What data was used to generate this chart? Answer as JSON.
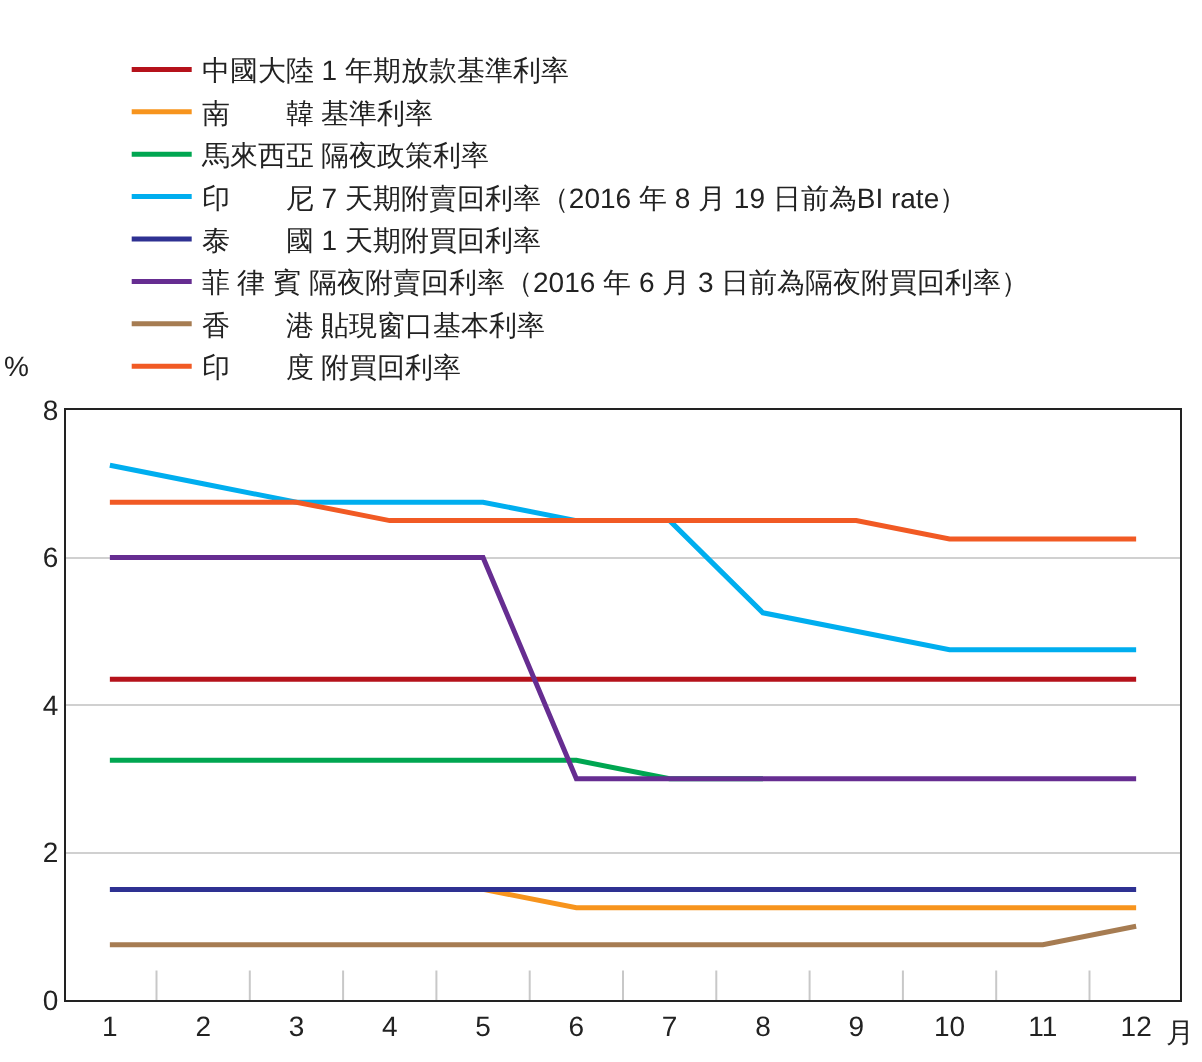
{
  "chart_data": {
    "type": "line",
    "xlabel": "月",
    "ylabel": "%",
    "x": [
      1,
      2,
      3,
      4,
      5,
      6,
      7,
      8,
      9,
      10,
      11,
      12
    ],
    "xlim": [
      0.53,
      12.47
    ],
    "xticks": [
      1,
      {
        "value": 1.5,
        "label": null
      },
      2,
      {
        "value": 2.5,
        "label": null
      },
      3,
      {
        "value": 3.5,
        "label": null
      },
      4,
      {
        "value": 4.5,
        "label": null
      },
      5,
      {
        "value": 5.5,
        "label": null
      },
      6,
      {
        "value": 6.5,
        "label": null
      },
      7,
      {
        "value": 7.5,
        "label": null
      },
      8,
      {
        "value": 8.5,
        "label": null
      },
      9,
      {
        "value": 9.5,
        "label": null
      },
      10,
      {
        "value": 10.5,
        "label": null
      },
      11,
      {
        "value": 11.5,
        "label": null
      },
      12
    ],
    "ylim": [
      0,
      8
    ],
    "yticks": [
      0,
      2,
      4,
      6,
      8
    ],
    "grid": "y",
    "legend": "top",
    "marker": "none",
    "line_style": "solid",
    "series": [
      {
        "name": "中國大陸 1 年期放款基準利率",
        "color": "#b5121b",
        "values": [
          4.35,
          4.35,
          4.35,
          4.35,
          4.35,
          4.35,
          4.35,
          4.35,
          4.35,
          4.35,
          4.35,
          4.35
        ]
      },
      {
        "name": "南　　韓 基準利率",
        "color": "#f7941d",
        "values": [
          null,
          null,
          null,
          null,
          1.5,
          1.25,
          1.25,
          1.25,
          1.25,
          1.25,
          1.25,
          1.25
        ]
      },
      {
        "name": "馬來西亞 隔夜政策利率",
        "color": "#00a651",
        "values": [
          3.25,
          3.25,
          3.25,
          3.25,
          3.25,
          3.25,
          3.0,
          3.0,
          null,
          null,
          null,
          null
        ]
      },
      {
        "name": "印　　尼 7 天期附賣回利率（2016 年 8 月 19 日前為BI rate）",
        "color": "#00aeef",
        "values": [
          7.25,
          7.0,
          6.75,
          6.75,
          6.75,
          6.5,
          6.5,
          5.25,
          5.0,
          4.75,
          4.75,
          4.75
        ]
      },
      {
        "name": "泰　　國 1 天期附買回利率",
        "color": "#2e3192",
        "values": [
          1.5,
          1.5,
          1.5,
          1.5,
          1.5,
          1.5,
          1.5,
          1.5,
          1.5,
          1.5,
          1.5,
          1.5
        ]
      },
      {
        "name": "菲 律 賓 隔夜附賣回利率（2016 年 6 月 3 日前為隔夜附買回利率）",
        "color": "#662d91",
        "values": [
          6.0,
          6.0,
          6.0,
          6.0,
          6.0,
          3.0,
          3.0,
          3.0,
          3.0,
          3.0,
          3.0,
          3.0
        ]
      },
      {
        "name": "香　　港 貼現窗口基本利率",
        "color": "#a67c52",
        "values": [
          0.75,
          0.75,
          0.75,
          0.75,
          0.75,
          0.75,
          0.75,
          0.75,
          0.75,
          0.75,
          0.75,
          1.0
        ]
      },
      {
        "name": "印　　度 附買回利率",
        "color": "#f15a24",
        "values": [
          6.75,
          6.75,
          6.75,
          6.5,
          6.5,
          6.5,
          6.5,
          6.5,
          6.5,
          6.25,
          6.25,
          6.25
        ]
      }
    ]
  }
}
